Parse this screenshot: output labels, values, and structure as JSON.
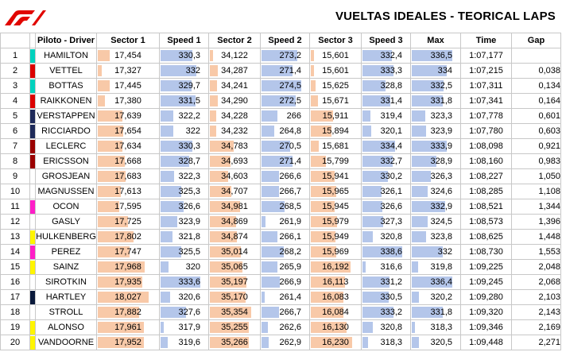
{
  "header": {
    "title": "VUELTAS IDEALES - TEORICAL LAPS"
  },
  "colors": {
    "orange_bar": "#f8c9a8",
    "blue_bar": "#b4c6ea",
    "logo_red": "#e10600"
  },
  "columns": [
    "",
    "",
    "Piloto - Driver",
    "Sector 1",
    "Speed 1",
    "Sector 2",
    "Speed 2",
    "Sector 3",
    "Speed 3",
    "Max",
    "Time",
    "Gap"
  ],
  "rows": [
    {
      "pos": "1",
      "team_color": "#00d2be",
      "driver": "HAMILTON",
      "s1": "17,454",
      "sp1": "330,3",
      "s2": "34,122",
      "sp2": "273,2",
      "s3": "15,601",
      "sp3": "332,4",
      "max": "336,5",
      "time": "1:07,177",
      "gap": ""
    },
    {
      "pos": "2",
      "team_color": "#dc0000",
      "driver": "VETTEL",
      "s1": "17,327",
      "sp1": "332",
      "s2": "34,287",
      "sp2": "271,4",
      "s3": "15,601",
      "sp3": "333,3",
      "max": "334",
      "time": "1:07,215",
      "gap": "0,038"
    },
    {
      "pos": "3",
      "team_color": "#00d2be",
      "driver": "BOTTAS",
      "s1": "17,445",
      "sp1": "329,7",
      "s2": "34,241",
      "sp2": "274,5",
      "s3": "15,625",
      "sp3": "328,8",
      "max": "332,5",
      "time": "1:07,311",
      "gap": "0,134"
    },
    {
      "pos": "4",
      "team_color": "#dc0000",
      "driver": "RAIKKONEN",
      "s1": "17,380",
      "sp1": "331,5",
      "s2": "34,290",
      "sp2": "272,5",
      "s3": "15,671",
      "sp3": "331,4",
      "max": "331,8",
      "time": "1:07,341",
      "gap": "0,164"
    },
    {
      "pos": "5",
      "team_color": "#1e2a5a",
      "driver": "VERSTAPPEN",
      "s1": "17,639",
      "sp1": "322,2",
      "s2": "34,228",
      "sp2": "266",
      "s3": "15,911",
      "sp3": "319,4",
      "max": "323,3",
      "time": "1:07,778",
      "gap": "0,601"
    },
    {
      "pos": "6",
      "team_color": "#1e2a5a",
      "driver": "RICCIARDO",
      "s1": "17,654",
      "sp1": "322",
      "s2": "34,232",
      "sp2": "264,8",
      "s3": "15,894",
      "sp3": "320,1",
      "max": "323,9",
      "time": "1:07,780",
      "gap": "0,603"
    },
    {
      "pos": "7",
      "team_color": "#9b0000",
      "driver": "LECLERC",
      "s1": "17,634",
      "sp1": "330,3",
      "s2": "34,783",
      "sp2": "270,5",
      "s3": "15,681",
      "sp3": "334,4",
      "max": "333,9",
      "time": "1:08,098",
      "gap": "0,921"
    },
    {
      "pos": "8",
      "team_color": "#9b0000",
      "driver": "ERICSSON",
      "s1": "17,668",
      "sp1": "328,7",
      "s2": "34,693",
      "sp2": "271,4",
      "s3": "15,799",
      "sp3": "332,7",
      "max": "328,9",
      "time": "1:08,160",
      "gap": "0,983"
    },
    {
      "pos": "9",
      "team_color": "#ffffff",
      "driver": "GROSJEAN",
      "s1": "17,683",
      "sp1": "322,3",
      "s2": "34,603",
      "sp2": "266,6",
      "s3": "15,941",
      "sp3": "330,2",
      "max": "326,3",
      "time": "1:08,227",
      "gap": "1,050"
    },
    {
      "pos": "10",
      "team_color": "#ffffff",
      "driver": "MAGNUSSEN",
      "s1": "17,613",
      "sp1": "325,3",
      "s2": "34,707",
      "sp2": "266,7",
      "s3": "15,965",
      "sp3": "326,1",
      "max": "324,6",
      "time": "1:08,285",
      "gap": "1,108"
    },
    {
      "pos": "11",
      "team_color": "#ff1ec8",
      "driver": "OCON",
      "s1": "17,595",
      "sp1": "326,6",
      "s2": "34,981",
      "sp2": "268,5",
      "s3": "15,945",
      "sp3": "326,6",
      "max": "332,9",
      "time": "1:08,521",
      "gap": "1,344"
    },
    {
      "pos": "12",
      "team_color": "#ffffff",
      "driver": "GASLY",
      "s1": "17,725",
      "sp1": "323,9",
      "s2": "34,869",
      "sp2": "261,9",
      "s3": "15,979",
      "sp3": "327,3",
      "max": "324,5",
      "time": "1:08,573",
      "gap": "1,396"
    },
    {
      "pos": "13",
      "team_color": "#fff500",
      "driver": "HULKENBERG",
      "s1": "17,802",
      "sp1": "321,8",
      "s2": "34,874",
      "sp2": "266,1",
      "s3": "15,949",
      "sp3": "320,8",
      "max": "323,8",
      "time": "1:08,625",
      "gap": "1,448"
    },
    {
      "pos": "14",
      "team_color": "#ff1ec8",
      "driver": "PEREZ",
      "s1": "17,747",
      "sp1": "325,5",
      "s2": "35,014",
      "sp2": "268,2",
      "s3": "15,969",
      "sp3": "338,6",
      "max": "332",
      "time": "1:08,730",
      "gap": "1,553"
    },
    {
      "pos": "15",
      "team_color": "#fff500",
      "driver": "SAINZ",
      "s1": "17,968",
      "sp1": "320",
      "s2": "35,065",
      "sp2": "265,9",
      "s3": "16,192",
      "sp3": "316,6",
      "max": "319,8",
      "time": "1:09,225",
      "gap": "2,048"
    },
    {
      "pos": "16",
      "team_color": "#ffffff",
      "driver": "SIROTKIN",
      "s1": "17,935",
      "sp1": "333,6",
      "s2": "35,197",
      "sp2": "266,9",
      "s3": "16,113",
      "sp3": "331,2",
      "max": "336,4",
      "time": "1:09,245",
      "gap": "2,068"
    },
    {
      "pos": "17",
      "team_color": "#0a1a3c",
      "driver": "HARTLEY",
      "s1": "18,027",
      "sp1": "320,6",
      "s2": "35,170",
      "sp2": "261,4",
      "s3": "16,083",
      "sp3": "330,5",
      "max": "320,2",
      "time": "1:09,280",
      "gap": "2,103"
    },
    {
      "pos": "18",
      "team_color": "#ffffff",
      "driver": "STROLL",
      "s1": "17,882",
      "sp1": "327,6",
      "s2": "35,354",
      "sp2": "266,7",
      "s3": "16,084",
      "sp3": "333,2",
      "max": "331,8",
      "time": "1:09,320",
      "gap": "2,143"
    },
    {
      "pos": "19",
      "team_color": "#fff500",
      "driver": "ALONSO",
      "s1": "17,961",
      "sp1": "317,9",
      "s2": "35,255",
      "sp2": "262,6",
      "s3": "16,130",
      "sp3": "320,8",
      "max": "318,3",
      "time": "1:09,346",
      "gap": "2,169"
    },
    {
      "pos": "20",
      "team_color": "#fff500",
      "driver": "VANDOORNE",
      "s1": "17,952",
      "sp1": "319,6",
      "s2": "35,266",
      "sp2": "262,9",
      "s3": "16,230",
      "sp3": "318,3",
      "max": "320,5",
      "time": "1:09,448",
      "gap": "2,271"
    }
  ]
}
